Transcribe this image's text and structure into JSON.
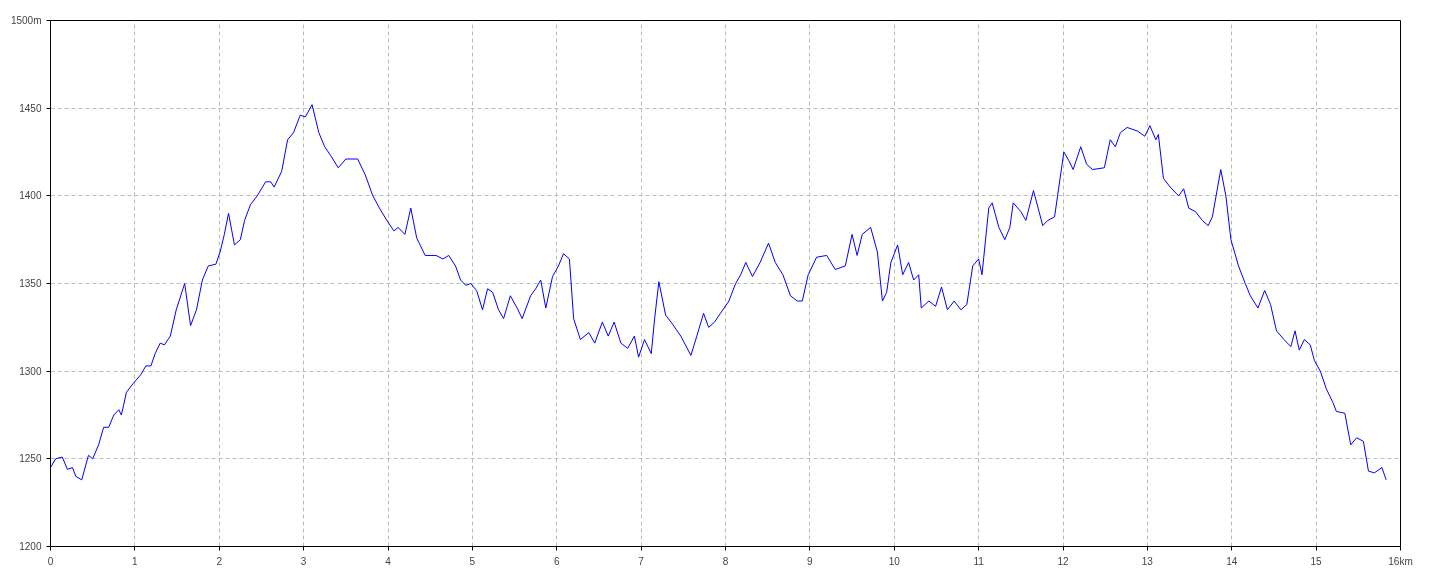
{
  "chart_data": {
    "type": "line",
    "xlim": [
      0,
      16
    ],
    "ylim": [
      1200,
      1500
    ],
    "xticks": [
      0,
      1,
      2,
      3,
      4,
      5,
      6,
      7,
      8,
      9,
      10,
      11,
      12,
      13,
      14,
      15,
      {
        "value": 16,
        "label": "16km"
      }
    ],
    "yticks": [
      1200,
      1250,
      1300,
      1350,
      1400,
      1450,
      {
        "value": 1500,
        "label": "1500m"
      }
    ],
    "grid": true,
    "series": [
      {
        "color": "#0000ff",
        "line_style": "solid",
        "x": [
          0,
          0.06,
          0.14,
          0.2,
          0.26,
          0.3,
          0.37,
          0.45,
          0.5,
          0.57,
          0.63,
          0.69,
          0.75,
          0.81,
          0.84,
          0.9,
          0.98,
          1.07,
          1.13,
          1.19,
          1.24,
          1.3,
          1.35,
          1.42,
          1.49,
          1.59,
          1.66,
          1.73,
          1.8,
          1.87,
          1.96,
          2.01,
          2.06,
          2.11,
          2.18,
          2.25,
          2.3,
          2.37,
          2.45,
          2.55,
          2.61,
          2.65,
          2.74,
          2.81,
          2.88,
          2.96,
          3.02,
          3.1,
          3.18,
          3.25,
          3.32,
          3.41,
          3.5,
          3.64,
          3.73,
          3.82,
          3.91,
          4.0,
          4.07,
          4.12,
          4.2,
          4.27,
          4.34,
          4.44,
          4.57,
          4.65,
          4.72,
          4.8,
          4.86,
          4.92,
          4.98,
          5.05,
          5.12,
          5.18,
          5.24,
          5.31,
          5.37,
          5.45,
          5.53,
          5.59,
          5.69,
          5.75,
          5.81,
          5.87,
          5.95,
          6.02,
          6.08,
          6.15,
          6.2,
          6.28,
          6.38,
          6.45,
          6.54,
          6.61,
          6.68,
          6.76,
          6.84,
          6.92,
          6.97,
          7.04,
          7.12,
          7.16,
          7.21,
          7.29,
          7.37,
          7.47,
          7.59,
          7.66,
          7.74,
          7.8,
          7.87,
          7.94,
          8.04,
          8.12,
          8.18,
          8.24,
          8.32,
          8.41,
          8.51,
          8.59,
          8.68,
          8.77,
          8.85,
          8.91,
          8.98,
          9.08,
          9.2,
          9.3,
          9.42,
          9.5,
          9.56,
          9.62,
          9.72,
          9.8,
          9.86,
          9.91,
          9.96,
          10.04,
          10.1,
          10.17,
          10.23,
          10.29,
          10.32,
          10.41,
          10.49,
          10.56,
          10.63,
          10.71,
          10.79,
          10.86,
          10.93,
          11.0,
          11.04,
          11.12,
          11.16,
          11.24,
          11.31,
          11.37,
          11.41,
          11.5,
          11.56,
          11.65,
          11.76,
          11.82,
          11.9,
          12.01,
          12.07,
          12.12,
          12.21,
          12.28,
          12.35,
          12.49,
          12.56,
          12.62,
          12.68,
          12.76,
          12.88,
          12.97,
          13.03,
          13.1,
          13.13,
          13.19,
          13.27,
          13.37,
          13.43,
          13.49,
          13.57,
          13.65,
          13.72,
          13.77,
          13.87,
          13.93,
          13.99,
          14.08,
          14.16,
          14.22,
          14.31,
          14.39,
          14.46,
          14.53,
          14.62,
          14.7,
          14.75,
          14.8,
          14.86,
          14.93,
          14.98,
          15.05,
          15.12,
          15.2,
          15.24,
          15.34,
          15.41,
          15.48,
          15.56,
          15.62,
          15.69,
          15.78,
          15.83
        ],
        "values": [
          1245,
          1250,
          1251,
          1244,
          1245,
          1240,
          1238,
          1252,
          1250,
          1258,
          1268,
          1268,
          1275,
          1278,
          1275,
          1288,
          1293,
          1298,
          1303,
          1303,
          1310,
          1316,
          1315,
          1320,
          1335,
          1350,
          1326,
          1335,
          1352,
          1360,
          1361,
          1368,
          1378,
          1390,
          1372,
          1375,
          1386,
          1395,
          1400,
          1408,
          1408,
          1405,
          1414,
          1432,
          1436,
          1446,
          1445,
          1452,
          1436,
          1428,
          1423,
          1416,
          1421,
          1421,
          1412,
          1400,
          1392,
          1385,
          1380,
          1382,
          1378,
          1393,
          1376,
          1366,
          1366,
          1364,
          1366,
          1360,
          1352,
          1349,
          1350,
          1346,
          1335,
          1347,
          1345,
          1335,
          1330,
          1343,
          1336,
          1330,
          1343,
          1347,
          1352,
          1336,
          1354,
          1360,
          1367,
          1364,
          1330,
          1318,
          1322,
          1316,
          1328,
          1320,
          1328,
          1316,
          1313,
          1320,
          1308,
          1318,
          1310,
          1330,
          1351,
          1332,
          1327,
          1320,
          1309,
          1320,
          1333,
          1325,
          1328,
          1333,
          1340,
          1350,
          1355,
          1362,
          1354,
          1362,
          1373,
          1362,
          1355,
          1343,
          1340,
          1340,
          1355,
          1365,
          1366,
          1358,
          1360,
          1378,
          1366,
          1378,
          1382,
          1368,
          1340,
          1345,
          1362,
          1372,
          1355,
          1362,
          1352,
          1355,
          1336,
          1340,
          1337,
          1348,
          1335,
          1340,
          1335,
          1338,
          1360,
          1364,
          1355,
          1393,
          1396,
          1382,
          1375,
          1382,
          1396,
          1391,
          1386,
          1403,
          1383,
          1386,
          1388,
          1425,
          1420,
          1415,
          1428,
          1418,
          1415,
          1416,
          1432,
          1428,
          1436,
          1439,
          1437,
          1434,
          1440,
          1432,
          1435,
          1410,
          1405,
          1400,
          1404,
          1393,
          1391,
          1386,
          1383,
          1388,
          1415,
          1400,
          1375,
          1360,
          1350,
          1343,
          1336,
          1346,
          1338,
          1323,
          1318,
          1314,
          1323,
          1312,
          1318,
          1315,
          1306,
          1300,
          1290,
          1282,
          1277,
          1276,
          1258,
          1262,
          1260,
          1243,
          1242,
          1245,
          1238
        ]
      }
    ]
  }
}
